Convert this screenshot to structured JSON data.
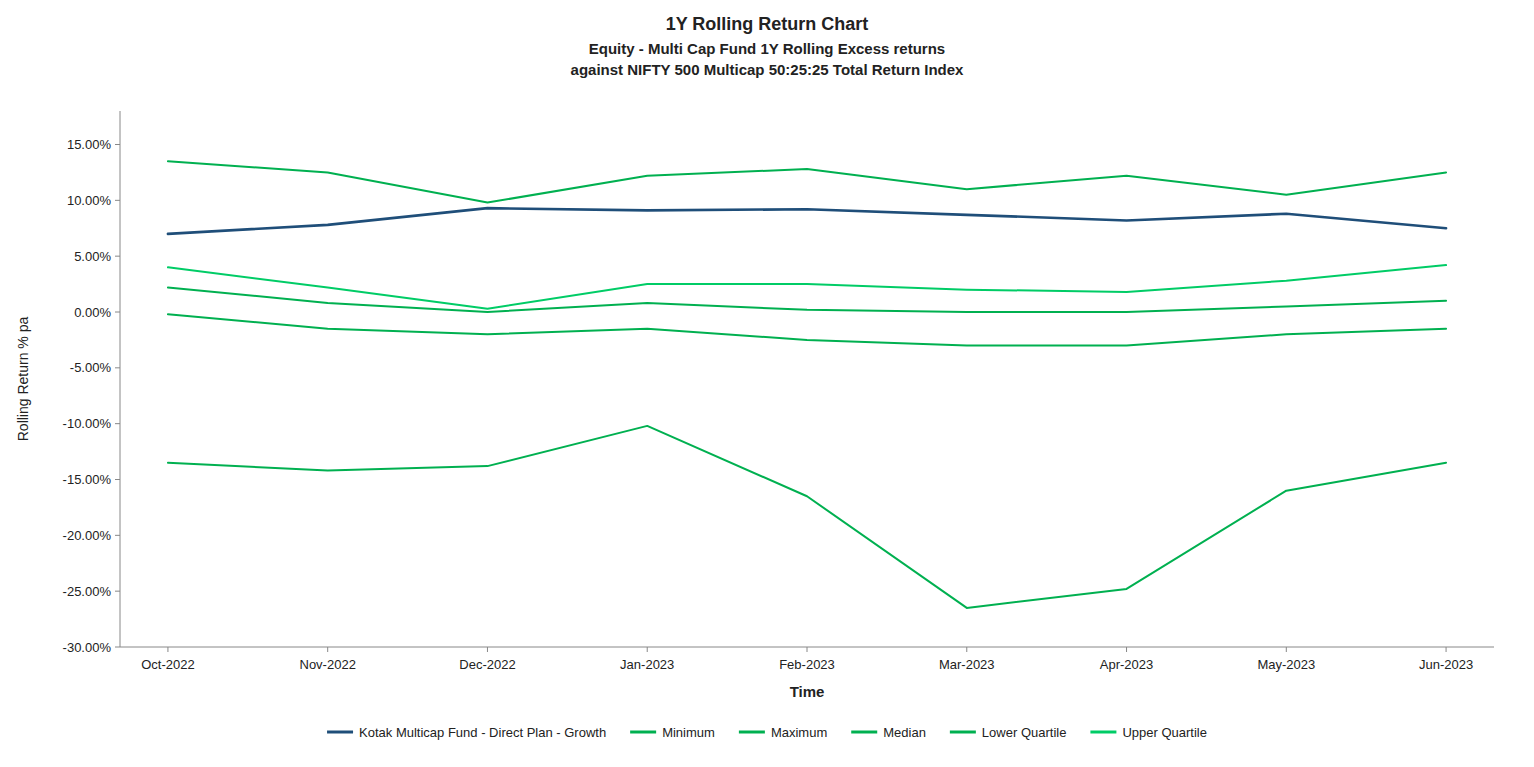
{
  "chart_data": {
    "type": "line",
    "title": "1Y Rolling Return Chart",
    "subtitle": [
      "Equity - Multi Cap Fund 1Y Rolling Excess returns",
      "against NIFTY 500 Multicap 50:25:25 Total Return Index"
    ],
    "x_label": "Time",
    "y_label": "Rolling Return % pa",
    "categories": [
      "Oct-2022",
      "Nov-2022",
      "Dec-2022",
      "Jan-2023",
      "Feb-2023",
      "Mar-2023",
      "Apr-2023",
      "May-2023",
      "Jun-2023"
    ],
    "ylim": [
      -30,
      18
    ],
    "yticks": [
      {
        "value": -30,
        "label": "-30.00%"
      },
      {
        "value": -25,
        "label": "-25.00%"
      },
      {
        "value": -20,
        "label": "-20.00%"
      },
      {
        "value": -15,
        "label": "-15.00%"
      },
      {
        "value": -10,
        "label": "-10.00%"
      },
      {
        "value": -5,
        "label": "-5.00%"
      },
      {
        "value": 0,
        "label": "0.00%"
      },
      {
        "value": 5,
        "label": "5.00%"
      },
      {
        "value": 10,
        "label": "10.00%"
      },
      {
        "value": 15,
        "label": "15.00%"
      }
    ],
    "grid": false,
    "legend": "bottom",
    "series": [
      {
        "name": "Kotak Multicap Fund - Direct Plan - Growth",
        "color": "#1f4e79",
        "values": [
          7.0,
          7.8,
          9.3,
          9.1,
          9.2,
          8.7,
          8.2,
          8.8,
          7.5
        ]
      },
      {
        "name": "Minimum",
        "color": "#00b050",
        "values": [
          -13.5,
          -14.2,
          -13.8,
          -10.2,
          -16.5,
          -26.5,
          -24.8,
          -16.0,
          -13.5
        ]
      },
      {
        "name": "Maximum",
        "color": "#00b050",
        "values": [
          13.5,
          12.5,
          9.8,
          12.2,
          12.8,
          11.0,
          12.2,
          10.5,
          12.5
        ]
      },
      {
        "name": "Median",
        "color": "#00b050",
        "values": [
          2.2,
          0.8,
          0.0,
          0.8,
          0.2,
          0.0,
          0.0,
          0.5,
          1.0
        ]
      },
      {
        "name": "Lower Quartile",
        "color": "#00b050",
        "values": [
          -0.2,
          -1.5,
          -2.0,
          -1.5,
          -2.5,
          -3.0,
          -3.0,
          -2.0,
          -1.5
        ]
      },
      {
        "name": "Upper Quartile",
        "color": "#00cc66",
        "values": [
          4.0,
          2.2,
          0.3,
          2.5,
          2.5,
          2.0,
          1.8,
          2.8,
          4.2
        ]
      }
    ]
  }
}
